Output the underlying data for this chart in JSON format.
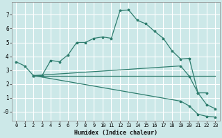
{
  "xlabel": "Humidex (Indice chaleur)",
  "bg_color": "#cce8e8",
  "grid_color": "#ffffff",
  "line_color": "#2e7d6e",
  "x_ticks": [
    0,
    1,
    2,
    3,
    4,
    5,
    6,
    7,
    8,
    9,
    10,
    11,
    12,
    13,
    14,
    15,
    16,
    17,
    18,
    19,
    20,
    21,
    22,
    23
  ],
  "y_ticks": [
    0,
    1,
    2,
    3,
    4,
    5,
    6,
    7
  ],
  "y_tick_labels": [
    "-0",
    "1",
    "2",
    "3",
    "4",
    "5",
    "6",
    "7"
  ],
  "ylim": [
    -0.65,
    7.9
  ],
  "xlim": [
    -0.5,
    23.5
  ],
  "line1_x": [
    0,
    1,
    2,
    3,
    4,
    5,
    6,
    7,
    8,
    9,
    10,
    11,
    12,
    13,
    14,
    15,
    16,
    17,
    18,
    19,
    20,
    21,
    22
  ],
  "line1_y": [
    3.6,
    3.3,
    2.6,
    2.6,
    3.7,
    3.6,
    4.1,
    5.0,
    5.0,
    5.3,
    5.4,
    5.3,
    7.3,
    7.35,
    6.6,
    6.35,
    5.8,
    5.3,
    4.4,
    3.8,
    3.85,
    1.35,
    1.35
  ],
  "line2_x": [
    2,
    23
  ],
  "line2_y": [
    2.6,
    2.6
  ],
  "line3_x": [
    2,
    19,
    20,
    21,
    22,
    23
  ],
  "line3_y": [
    2.6,
    3.3,
    2.55,
    1.35,
    0.5,
    0.2
  ],
  "line4_x": [
    2,
    19,
    20,
    21,
    22,
    23
  ],
  "line4_y": [
    2.6,
    0.75,
    0.4,
    -0.2,
    -0.35,
    -0.4
  ]
}
